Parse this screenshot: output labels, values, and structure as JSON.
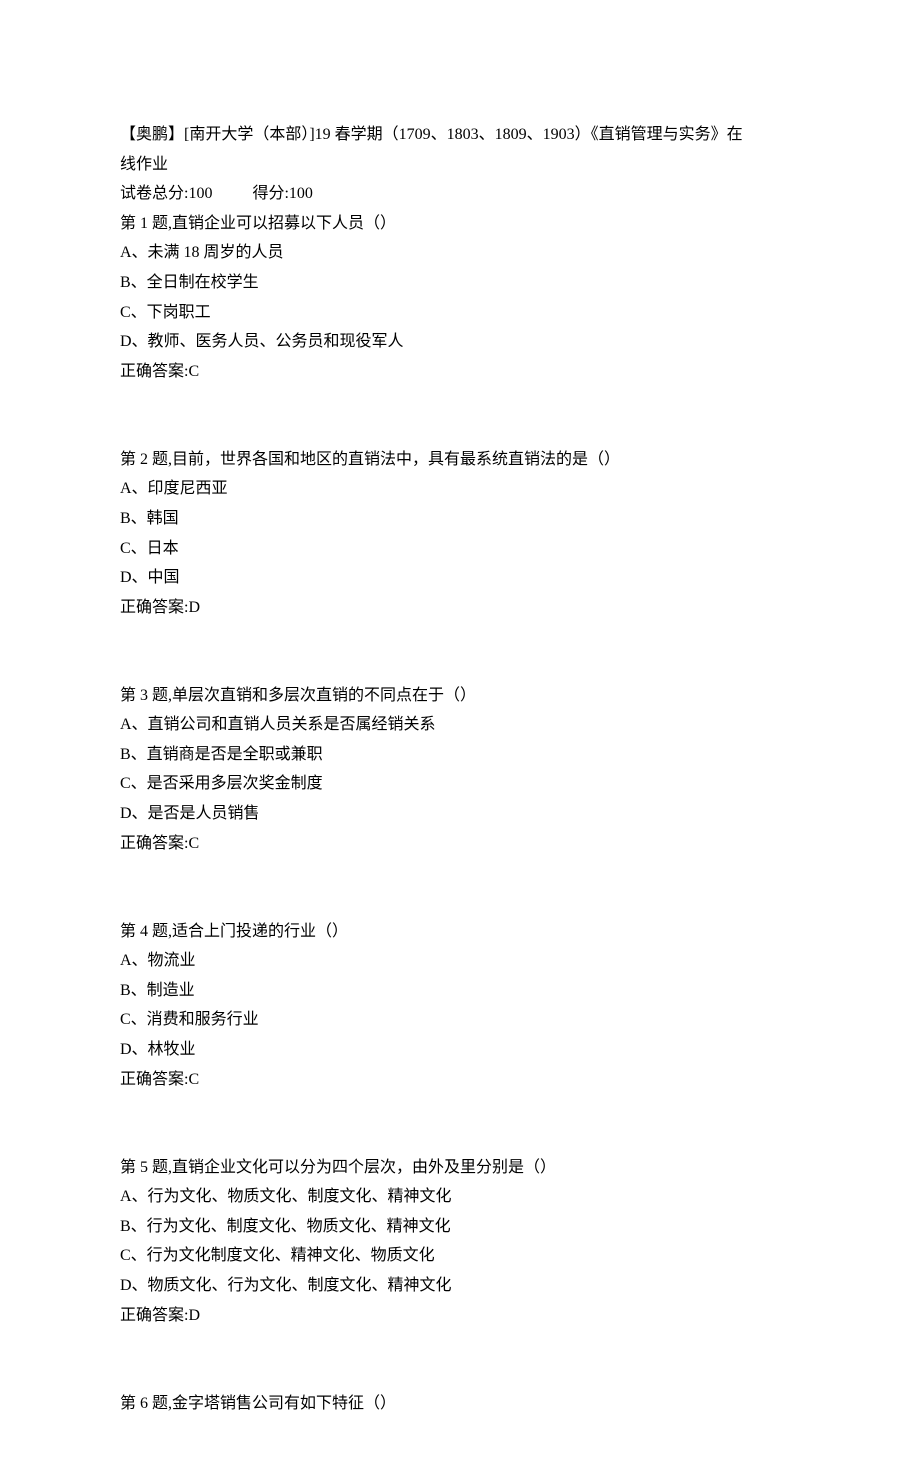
{
  "header": {
    "title_line1": "【奥鹏】[南开大学（本部）]19 春学期（1709、1803、1809、1903）《直销管理与实务》在",
    "title_line2": "线作业",
    "total_label": "试卷总分:100",
    "score_label": "得分:100"
  },
  "questions": [
    {
      "prompt": "第 1 题,直销企业可以招募以下人员（）",
      "options": [
        "A、未满 18 周岁的人员",
        "B、全日制在校学生",
        "C、下岗职工",
        "D、教师、医务人员、公务员和现役军人"
      ],
      "answer": "正确答案:C"
    },
    {
      "prompt": "第 2 题,目前，世界各国和地区的直销法中，具有最系统直销法的是（）",
      "options": [
        "A、印度尼西亚",
        "B、韩国",
        "C、日本",
        "D、中国"
      ],
      "answer": "正确答案:D"
    },
    {
      "prompt": "第 3 题,单层次直销和多层次直销的不同点在于（）",
      "options": [
        "A、直销公司和直销人员关系是否属经销关系",
        "B、直销商是否是全职或兼职",
        "C、是否采用多层次奖金制度",
        "D、是否是人员销售"
      ],
      "answer": "正确答案:C"
    },
    {
      "prompt": "第 4 题,适合上门投递的行业（）",
      "options": [
        "A、物流业",
        "B、制造业",
        "C、消费和服务行业",
        "D、林牧业"
      ],
      "answer": "正确答案:C"
    },
    {
      "prompt": "第 5 题,直销企业文化可以分为四个层次，由外及里分别是（）",
      "options": [
        "A、行为文化、物质文化、制度文化、精神文化",
        "B、行为文化、制度文化、物质文化、精神文化",
        "C、行为文化制度文化、精神文化、物质文化",
        "D、物质文化、行为文化、制度文化、精神文化"
      ],
      "answer": "正确答案:D"
    },
    {
      "prompt": "第 6 题,金字塔销售公司有如下特征（）",
      "options": [],
      "answer": ""
    }
  ]
}
